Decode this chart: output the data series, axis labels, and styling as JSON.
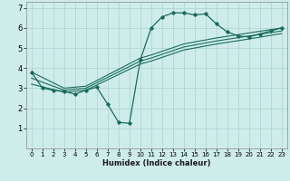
{
  "title": "",
  "xlabel": "Humidex (Indice chaleur)",
  "bg_color": "#ceecea",
  "line_color": "#1a6b5e",
  "xlim": [
    -0.5,
    23.5
  ],
  "ylim": [
    0,
    7.3
  ],
  "xticks": [
    0,
    1,
    2,
    3,
    4,
    5,
    6,
    7,
    8,
    9,
    10,
    11,
    12,
    13,
    14,
    15,
    16,
    17,
    18,
    19,
    20,
    21,
    22,
    23
  ],
  "yticks": [
    1,
    2,
    3,
    4,
    5,
    6,
    7
  ],
  "curve1_x": [
    0,
    1,
    2,
    3,
    4,
    5,
    6,
    7,
    8,
    9,
    10,
    11,
    12,
    13,
    14,
    15,
    16,
    17,
    18,
    19,
    20,
    21,
    22,
    23
  ],
  "curve1_y": [
    3.8,
    3.0,
    2.9,
    2.85,
    2.7,
    2.9,
    3.05,
    2.2,
    1.3,
    1.25,
    4.4,
    6.0,
    6.55,
    6.75,
    6.75,
    6.65,
    6.7,
    6.2,
    5.8,
    5.6,
    5.55,
    5.7,
    5.85,
    6.0
  ],
  "curve2_x": [
    0,
    3,
    5,
    10,
    11,
    14,
    17,
    20,
    23
  ],
  "curve2_y": [
    3.8,
    3.0,
    3.1,
    4.5,
    4.65,
    5.2,
    5.5,
    5.75,
    6.0
  ],
  "curve3_x": [
    0,
    3,
    5,
    10,
    11,
    14,
    17,
    20,
    23
  ],
  "curve3_y": [
    3.5,
    2.9,
    3.0,
    4.35,
    4.5,
    5.05,
    5.35,
    5.6,
    5.85
  ],
  "curve4_x": [
    0,
    3,
    5,
    10,
    11,
    14,
    17,
    20,
    23
  ],
  "curve4_y": [
    3.2,
    2.8,
    2.9,
    4.2,
    4.35,
    4.9,
    5.2,
    5.45,
    5.72
  ],
  "grid_color": "#aed8d4",
  "xlabel_fontsize": 6.0,
  "tick_fontsize_x": 5.0,
  "tick_fontsize_y": 6.0
}
